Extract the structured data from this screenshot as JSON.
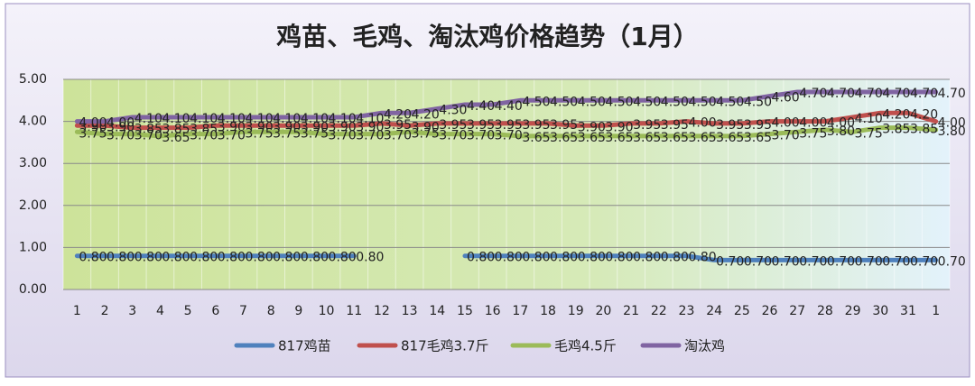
{
  "chart_data": {
    "type": "line",
    "title": "鸡苗、毛鸡、淘汰鸡价格趋势（1月）",
    "categories": [
      "1",
      "2",
      "3",
      "4",
      "5",
      "6",
      "7",
      "8",
      "9",
      "10",
      "11",
      "12",
      "13",
      "14",
      "15",
      "16",
      "17",
      "18",
      "19",
      "20",
      "21",
      "22",
      "23",
      "24",
      "25",
      "26",
      "27",
      "28",
      "29",
      "30",
      "31",
      "1"
    ],
    "ylim": [
      0,
      5
    ],
    "yticks": [
      {
        "value": 0,
        "label": "0.00"
      },
      {
        "value": 1,
        "label": "1.00"
      },
      {
        "value": 2,
        "label": "2.00"
      },
      {
        "value": 3,
        "label": "3.00"
      },
      {
        "value": 4,
        "label": "4.00"
      },
      {
        "value": 5,
        "label": "5.00"
      }
    ],
    "grid": true,
    "legend": "bottom",
    "series": [
      {
        "name": "817鸡苗",
        "color": "#4f81bd",
        "values": [
          0.8,
          0.8,
          0.8,
          0.8,
          0.8,
          0.8,
          0.8,
          0.8,
          0.8,
          0.8,
          0.8,
          null,
          null,
          null,
          0.8,
          0.8,
          0.8,
          0.8,
          0.8,
          0.8,
          0.8,
          0.8,
          0.8,
          0.7,
          0.7,
          0.7,
          0.7,
          0.7,
          0.7,
          0.7,
          0.7,
          0.7
        ],
        "value_labels": [
          "0.80",
          "0.80",
          "0.80",
          "0.80",
          "0.80",
          "0.80",
          "0.80",
          "0.80",
          "0.80",
          "0.80",
          "0.80",
          null,
          null,
          null,
          "0.80",
          "0.80",
          "0.80",
          "0.80",
          "0.80",
          "0.80",
          "0.80",
          "0.80",
          "0.80",
          "0.70",
          "0.70",
          "0.70",
          "0.70",
          "0.70",
          "0.70",
          "0.70",
          "0.70",
          "0.70"
        ]
      },
      {
        "name": "817毛鸡3.7斤",
        "color": "#c0504d",
        "values": [
          3.9,
          3.9,
          3.85,
          3.85,
          3.85,
          3.9,
          3.9,
          3.9,
          3.9,
          3.9,
          3.9,
          3.95,
          3.9,
          3.95,
          3.95,
          3.95,
          3.95,
          3.95,
          3.9,
          3.9,
          3.95,
          3.95,
          4.0,
          3.95,
          3.95,
          4.0,
          4.0,
          4.0,
          4.1,
          4.2,
          4.2,
          4.0
        ],
        "value_labels": [
          "3.90",
          "3.90",
          "3.85",
          "3.85",
          "3.85",
          "3.90",
          "3.90",
          "3.90",
          "3.90",
          "3.90",
          "3.90",
          "3.95",
          "3.90",
          "3.95",
          "3.95",
          "3.95",
          "3.95",
          "3.95",
          "3.90",
          "3.90",
          "3.95",
          "3.95",
          "4.00",
          "3.95",
          "3.95",
          "4.00",
          "4.00",
          "4.00",
          "4.10",
          "4.20",
          "4.20",
          "4.00"
        ]
      },
      {
        "name": "毛鸡4.5斤",
        "color": "#9bbb59",
        "values": [
          3.75,
          3.7,
          3.7,
          3.65,
          3.7,
          3.7,
          3.75,
          3.75,
          3.75,
          3.7,
          3.7,
          3.7,
          3.75,
          3.7,
          3.7,
          3.7,
          3.65,
          3.65,
          3.65,
          3.65,
          3.65,
          3.65,
          3.65,
          3.65,
          3.65,
          3.7,
          3.75,
          3.8,
          3.75,
          3.85,
          3.85,
          3.8
        ],
        "value_labels": [
          "3.75",
          "3.70",
          "3.70",
          "3.65",
          "3.70",
          "3.70",
          "3.75",
          "3.75",
          "3.75",
          "3.70",
          "3.70",
          "3.70",
          "3.75",
          "3.70",
          "3.70",
          "3.70",
          "3.65",
          "3.65",
          "3.65",
          "3.65",
          "3.65",
          "3.65",
          "3.65",
          "3.65",
          "3.65",
          "3.70",
          "3.75",
          "3.80",
          "3.75",
          "3.85",
          "3.85",
          "3.80"
        ]
      },
      {
        "name": "淘汰鸡",
        "color": "#8064a2",
        "values": [
          4.0,
          4.0,
          4.1,
          4.1,
          4.1,
          4.1,
          4.1,
          4.1,
          4.1,
          4.1,
          4.1,
          4.2,
          4.2,
          4.3,
          4.4,
          4.4,
          4.5,
          4.5,
          4.5,
          4.5,
          4.5,
          4.5,
          4.5,
          4.5,
          4.5,
          4.6,
          4.7,
          4.7,
          4.7,
          4.7,
          4.7,
          4.7
        ],
        "value_labels": [
          "4.00",
          "4.00",
          "4.10",
          "4.10",
          "4.10",
          "4.10",
          "4.10",
          "4.10",
          "4.10",
          "4.10",
          "4.10",
          "4.20",
          "4.20",
          "4.30",
          "4.40",
          "4.40",
          "4.50",
          "4.50",
          "4.50",
          "4.50",
          "4.50",
          "4.50",
          "4.50",
          "4.50",
          "4.50",
          "4.60",
          "4.70",
          "4.70",
          "4.70",
          "4.70",
          "4.70",
          "4.70"
        ]
      }
    ]
  }
}
